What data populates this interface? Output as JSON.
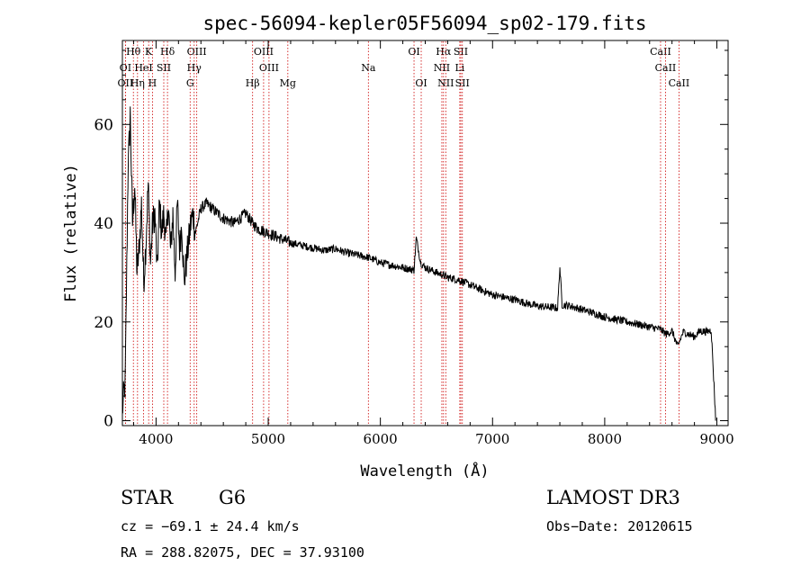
{
  "chart_data": {
    "type": "line",
    "title": "spec-56094-kepler05F56094_sp02-179.fits",
    "xlabel": "Wavelength (Å)",
    "ylabel": "Flux (relative)",
    "xlim": [
      3700,
      9100
    ],
    "ylim": [
      -1,
      77
    ],
    "xticks": [
      4000,
      5000,
      6000,
      7000,
      8000,
      9000
    ],
    "yticks": [
      0,
      20,
      40,
      60
    ],
    "xtick_labels": [
      "4000",
      "5000",
      "6000",
      "7000",
      "8000",
      "9000"
    ],
    "ytick_labels": [
      "0",
      "20",
      "40",
      "60"
    ],
    "series": [
      {
        "name": "flux",
        "x": [
          3700,
          3725,
          3750,
          3770,
          3790,
          3810,
          3830,
          3850,
          3870,
          3890,
          3910,
          3930,
          3950,
          3970,
          3990,
          4010,
          4030,
          4050,
          4070,
          4090,
          4110,
          4130,
          4150,
          4170,
          4190,
          4210,
          4230,
          4250,
          4270,
          4290,
          4310,
          4330,
          4350,
          4400,
          4450,
          4500,
          4600,
          4700,
          4800,
          4860,
          4900,
          5000,
          5100,
          5200,
          5300,
          5400,
          5500,
          5600,
          5700,
          5800,
          5900,
          6000,
          6100,
          6200,
          6300,
          6320,
          6360,
          6400,
          6500,
          6560,
          6600,
          6700,
          6800,
          6900,
          7000,
          7100,
          7200,
          7300,
          7400,
          7500,
          7580,
          7600,
          7620,
          7700,
          7800,
          7900,
          8000,
          8100,
          8200,
          8300,
          8400,
          8500,
          8550,
          8600,
          8650,
          8700,
          8750,
          8800,
          8850,
          8900,
          8950,
          8990
        ],
        "y": [
          2,
          8,
          50,
          62,
          40,
          48,
          30,
          35,
          44,
          28,
          36,
          48,
          32,
          40,
          42,
          30,
          44,
          38,
          42,
          36,
          44,
          34,
          42,
          30,
          44,
          35,
          40,
          28,
          32,
          36,
          40,
          42,
          38,
          43,
          44,
          43,
          41,
          40,
          42,
          40,
          39,
          38,
          37,
          36,
          35.5,
          35,
          34.5,
          34.8,
          34,
          33.5,
          33,
          32,
          31.5,
          31,
          30.5,
          37,
          32,
          31,
          30,
          29.5,
          29,
          28.5,
          27.5,
          26.5,
          25.5,
          25,
          24.5,
          23.8,
          23.2,
          23,
          22.8,
          31,
          23.5,
          23.2,
          22.5,
          21.8,
          21,
          20.5,
          20,
          19.5,
          19,
          18.5,
          17.5,
          18.2,
          15,
          18,
          17.5,
          17,
          18.2,
          18,
          18.3,
          0
        ]
      }
    ],
    "lines": [
      {
        "label": "Hθ",
        "x": 3798,
        "row": 1
      },
      {
        "label": "K",
        "x": 3934,
        "row": 1
      },
      {
        "label": "Hδ",
        "x": 4102,
        "row": 1
      },
      {
        "label": "OIII",
        "x": 4363,
        "row": 1
      },
      {
        "label": "OIII",
        "x": 4959,
        "row": 1
      },
      {
        "label": "OI",
        "x": 6300,
        "row": 1
      },
      {
        "label": "Hα",
        "x": 6563,
        "row": 1
      },
      {
        "label": "SII",
        "x": 6717,
        "row": 1
      },
      {
        "label": "CaII",
        "x": 8498,
        "row": 1
      },
      {
        "label": "OI",
        "x": 3727,
        "row": 2
      },
      {
        "label": "HeI",
        "x": 3889,
        "row": 2
      },
      {
        "label": "SII",
        "x": 4069,
        "row": 2
      },
      {
        "label": "Hγ",
        "x": 4340,
        "row": 2
      },
      {
        "label": "OIII",
        "x": 5007,
        "row": 2
      },
      {
        "label": "Na",
        "x": 5893,
        "row": 2
      },
      {
        "label": "NII",
        "x": 6548,
        "row": 2
      },
      {
        "label": "Li",
        "x": 6708,
        "row": 2
      },
      {
        "label": "CaII",
        "x": 8542,
        "row": 2
      },
      {
        "label": "OII",
        "x": 3727,
        "row": 3
      },
      {
        "label": "Hη",
        "x": 3835,
        "row": 3
      },
      {
        "label": "H",
        "x": 3968,
        "row": 3
      },
      {
        "label": "G",
        "x": 4304,
        "row": 3
      },
      {
        "label": "Hβ",
        "x": 4861,
        "row": 3
      },
      {
        "label": "Mg",
        "x": 5175,
        "row": 3
      },
      {
        "label": "OI",
        "x": 6364,
        "row": 3
      },
      {
        "label": "NII",
        "x": 6583,
        "row": 3
      },
      {
        "label": "SII",
        "x": 6731,
        "row": 3
      },
      {
        "label": "CaII",
        "x": 8662,
        "row": 3
      }
    ],
    "line_color": "#cc0000"
  },
  "info": {
    "object_class": "STAR",
    "subclass": "G6",
    "survey": "LAMOST DR3",
    "cz": "cz = −69.1 ± 24.4 km/s",
    "obs_date": "Obs−Date: 20120615",
    "coords": "RA = 288.82075, DEC =  37.93100"
  }
}
